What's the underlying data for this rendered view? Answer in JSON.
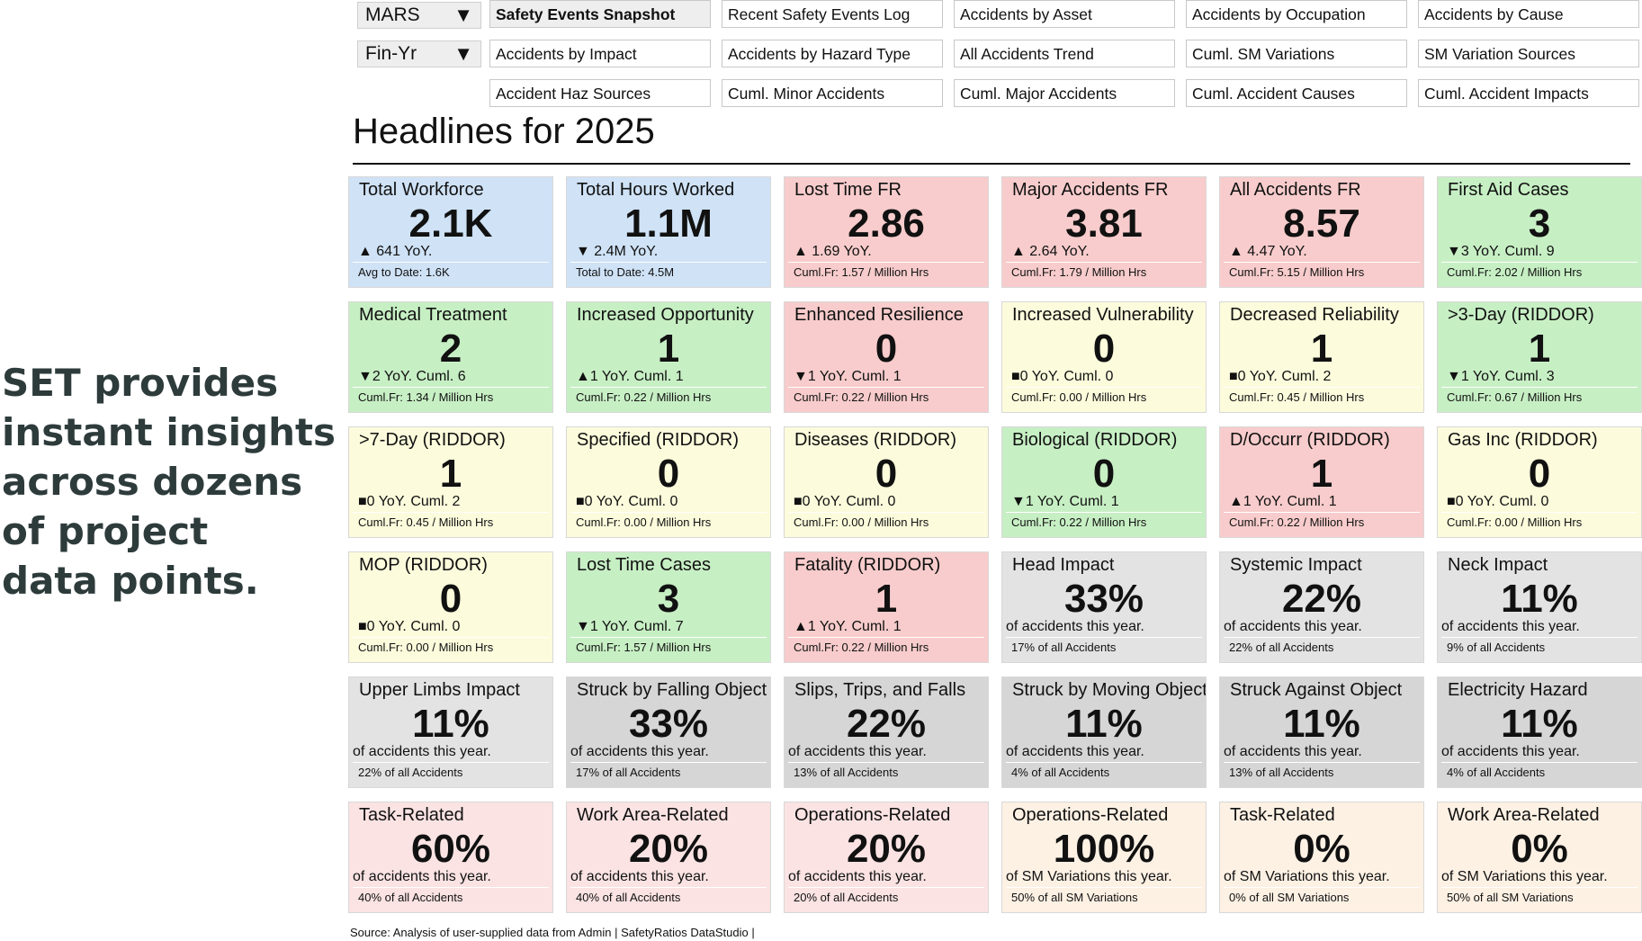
{
  "promo": {
    "lines": [
      "SET provides",
      "instant insights",
      "across dozens",
      "of project",
      "data points."
    ]
  },
  "filters": {
    "project": "MARS",
    "period": "Fin-Yr",
    "arrow": "▼"
  },
  "nav": {
    "row1": [
      "Safety Events Snapshot",
      "Recent Safety Events Log",
      "Accidents by Asset",
      "Accidents by Occupation",
      "Accidents by Cause"
    ],
    "row2": [
      "Accidents by Impact",
      "Accidents by Hazard Type",
      "All Accidents Trend",
      "Cuml. SM Variations",
      "SM Variation Sources"
    ],
    "row3": [
      "Accident Haz Sources",
      "Cuml. Minor Accidents",
      "Cuml. Major Accidents",
      "Cuml. Accident Causes",
      "Cuml. Accident Impacts"
    ]
  },
  "headline": "Headlines for 2025",
  "colors": {
    "blue": "#cfe2f6",
    "red": "#f8cccc",
    "green": "#c7efc4",
    "yellow": "#fcfbdc",
    "gray": "#e3e3e3",
    "gray2": "#d6d6d6",
    "pink": "#fbe3e3",
    "peach": "#fdf1e4"
  },
  "cards": [
    {
      "title": "Total Workforce",
      "value": "2.1K",
      "sub": "▲ 641 YoY.",
      "foot": "Avg to Date: 1.6K",
      "color": "blue"
    },
    {
      "title": "Total Hours Worked",
      "value": "1.1M",
      "sub": "▼ 2.4M YoY.",
      "foot": "Total to Date: 4.5M",
      "color": "blue"
    },
    {
      "title": "Lost Time FR",
      "value": "2.86",
      "sub": "▲ 1.69 YoY.",
      "foot": "Cuml.Fr: 1.57 / Million Hrs",
      "color": "red"
    },
    {
      "title": "Major Accidents FR",
      "value": "3.81",
      "sub": "▲ 2.64 YoY.",
      "foot": "Cuml.Fr: 1.79 / Million Hrs",
      "color": "red"
    },
    {
      "title": "All Accidents FR",
      "value": "8.57",
      "sub": "▲ 4.47 YoY.",
      "foot": "Cuml.Fr: 5.15 / Million Hrs",
      "color": "red"
    },
    {
      "title": "First Aid Cases",
      "value": "3",
      "sub": "▼3 YoY. Cuml. 9",
      "foot": "Cuml.Fr: 2.02 / Million Hrs",
      "color": "green"
    },
    {
      "title": "Medical Treatment",
      "value": "2",
      "sub": "▼2 YoY. Cuml. 6",
      "foot": "Cuml.Fr: 1.34 / Million Hrs",
      "color": "green"
    },
    {
      "title": "Increased Opportunity",
      "value": "1",
      "sub": "▲1 YoY. Cuml. 1",
      "foot": "Cuml.Fr: 0.22 / Million Hrs",
      "color": "green"
    },
    {
      "title": "Enhanced Resilience",
      "value": "0",
      "sub": "▼1 YoY. Cuml. 1",
      "foot": "Cuml.Fr: 0.22 / Million Hrs",
      "color": "red"
    },
    {
      "title": "Increased Vulnerability",
      "value": "0",
      "sub": "■0 YoY. Cuml. 0",
      "foot": "Cuml.Fr: 0.00 / Million Hrs",
      "color": "yellow"
    },
    {
      "title": "Decreased Reliability",
      "value": "1",
      "sub": "■0 YoY. Cuml. 2",
      "foot": "Cuml.Fr: 0.45 / Million Hrs",
      "color": "yellow"
    },
    {
      "title": ">3-Day (RIDDOR)",
      "value": "1",
      "sub": "▼1 YoY. Cuml. 3",
      "foot": "Cuml.Fr: 0.67 / Million Hrs",
      "color": "green"
    },
    {
      "title": ">7-Day (RIDDOR)",
      "value": "1",
      "sub": "■0 YoY. Cuml. 2",
      "foot": "Cuml.Fr: 0.45 / Million Hrs",
      "color": "yellow"
    },
    {
      "title": "Specified (RIDDOR)",
      "value": "0",
      "sub": "■0 YoY. Cuml. 0",
      "foot": "Cuml.Fr: 0.00 / Million Hrs",
      "color": "yellow"
    },
    {
      "title": "Diseases (RIDDOR)",
      "value": "0",
      "sub": "■0 YoY. Cuml. 0",
      "foot": "Cuml.Fr: 0.00 / Million Hrs",
      "color": "yellow"
    },
    {
      "title": "Biological (RIDDOR)",
      "value": "0",
      "sub": "▼1 YoY. Cuml. 1",
      "foot": "Cuml.Fr: 0.22 / Million Hrs",
      "color": "green"
    },
    {
      "title": "D/Occurr (RIDDOR)",
      "value": "1",
      "sub": "▲1 YoY. Cuml. 1",
      "foot": "Cuml.Fr: 0.22 / Million Hrs",
      "color": "red"
    },
    {
      "title": "Gas Inc (RIDDOR)",
      "value": "0",
      "sub": "■0 YoY. Cuml. 0",
      "foot": "Cuml.Fr: 0.00 / Million Hrs",
      "color": "yellow"
    },
    {
      "title": "MOP (RIDDOR)",
      "value": "0",
      "sub": "■0 YoY. Cuml. 0",
      "foot": "Cuml.Fr: 0.00 / Million Hrs",
      "color": "yellow"
    },
    {
      "title": "Lost Time Cases",
      "value": "3",
      "sub": "▼1 YoY. Cuml. 7",
      "foot": "Cuml.Fr: 1.57 / Million Hrs",
      "color": "green"
    },
    {
      "title": "Fatality (RIDDOR)",
      "value": "1",
      "sub": "▲1 YoY. Cuml. 1",
      "foot": "Cuml.Fr: 0.22 / Million Hrs",
      "color": "red"
    },
    {
      "title": "Head Impact",
      "value": "33%",
      "sub": "of accidents this year.",
      "foot": "17% of all Accidents",
      "color": "gray",
      "pct": true
    },
    {
      "title": "Systemic Impact",
      "value": "22%",
      "sub": "of accidents this year.",
      "foot": "22% of all Accidents",
      "color": "gray",
      "pct": true
    },
    {
      "title": "Neck Impact",
      "value": "11%",
      "sub": "of accidents this year.",
      "foot": "9% of all Accidents",
      "color": "gray",
      "pct": true
    },
    {
      "title": "Upper Limbs Impact",
      "value": "11%",
      "sub": "of accidents this year.",
      "foot": "22% of all Accidents",
      "color": "gray",
      "pct": true
    },
    {
      "title": "Struck by Falling Object",
      "value": "33%",
      "sub": "of accidents this year.",
      "foot": "17% of all Accidents",
      "color": "gray2",
      "pct": true
    },
    {
      "title": "Slips, Trips, and Falls",
      "value": "22%",
      "sub": "of accidents this year.",
      "foot": "13% of all Accidents",
      "color": "gray2",
      "pct": true
    },
    {
      "title": "Struck by Moving Object",
      "value": "11%",
      "sub": "of accidents this year.",
      "foot": "4% of all Accidents",
      "color": "gray2",
      "pct": true
    },
    {
      "title": "Struck Against Object",
      "value": "11%",
      "sub": "of accidents this year.",
      "foot": "13% of all Accidents",
      "color": "gray2",
      "pct": true
    },
    {
      "title": "Electricity Hazard",
      "value": "11%",
      "sub": "of accidents this year.",
      "foot": "4% of all Accidents",
      "color": "gray2",
      "pct": true
    },
    {
      "title": "Task-Related",
      "value": "60%",
      "sub": "of accidents this year.",
      "foot": "40% of all Accidents",
      "color": "pink",
      "pct": true
    },
    {
      "title": "Work Area-Related",
      "value": "20%",
      "sub": "of accidents this year.",
      "foot": "40% of all Accidents",
      "color": "pink",
      "pct": true
    },
    {
      "title": "Operations-Related",
      "value": "20%",
      "sub": "of accidents this year.",
      "foot": "20% of all Accidents",
      "color": "pink",
      "pct": true
    },
    {
      "title": "Operations-Related",
      "value": "100%",
      "sub": "of SM Variations this year.",
      "foot": "50% of all SM Variations",
      "color": "peach",
      "pct": true
    },
    {
      "title": "Task-Related",
      "value": "0%",
      "sub": "of SM Variations this year.",
      "foot": "0% of all SM Variations",
      "color": "peach",
      "pct": true
    },
    {
      "title": "Work Area-Related",
      "value": "0%",
      "sub": "of SM Variations this year.",
      "foot": "50% of all SM Variations",
      "color": "peach",
      "pct": true
    }
  ],
  "source": "Source: Analysis of user-supplied data from Admin | SafetyRatios DataStudio |"
}
